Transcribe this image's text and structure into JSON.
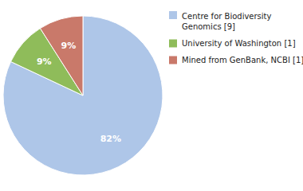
{
  "chart_data": {
    "type": "pie",
    "categories": [
      "Centre for Biodiversity\nGenomics [9]",
      "University of Washington [1]",
      "Mined from GenBank, NCBI [1]"
    ],
    "values": [
      82,
      9,
      9
    ],
    "value_labels": [
      "82%",
      "9%",
      "9%"
    ],
    "colors": [
      "#aec6e8",
      "#8fbc5a",
      "#c9796a"
    ],
    "data_labels": true,
    "legend": "right"
  }
}
